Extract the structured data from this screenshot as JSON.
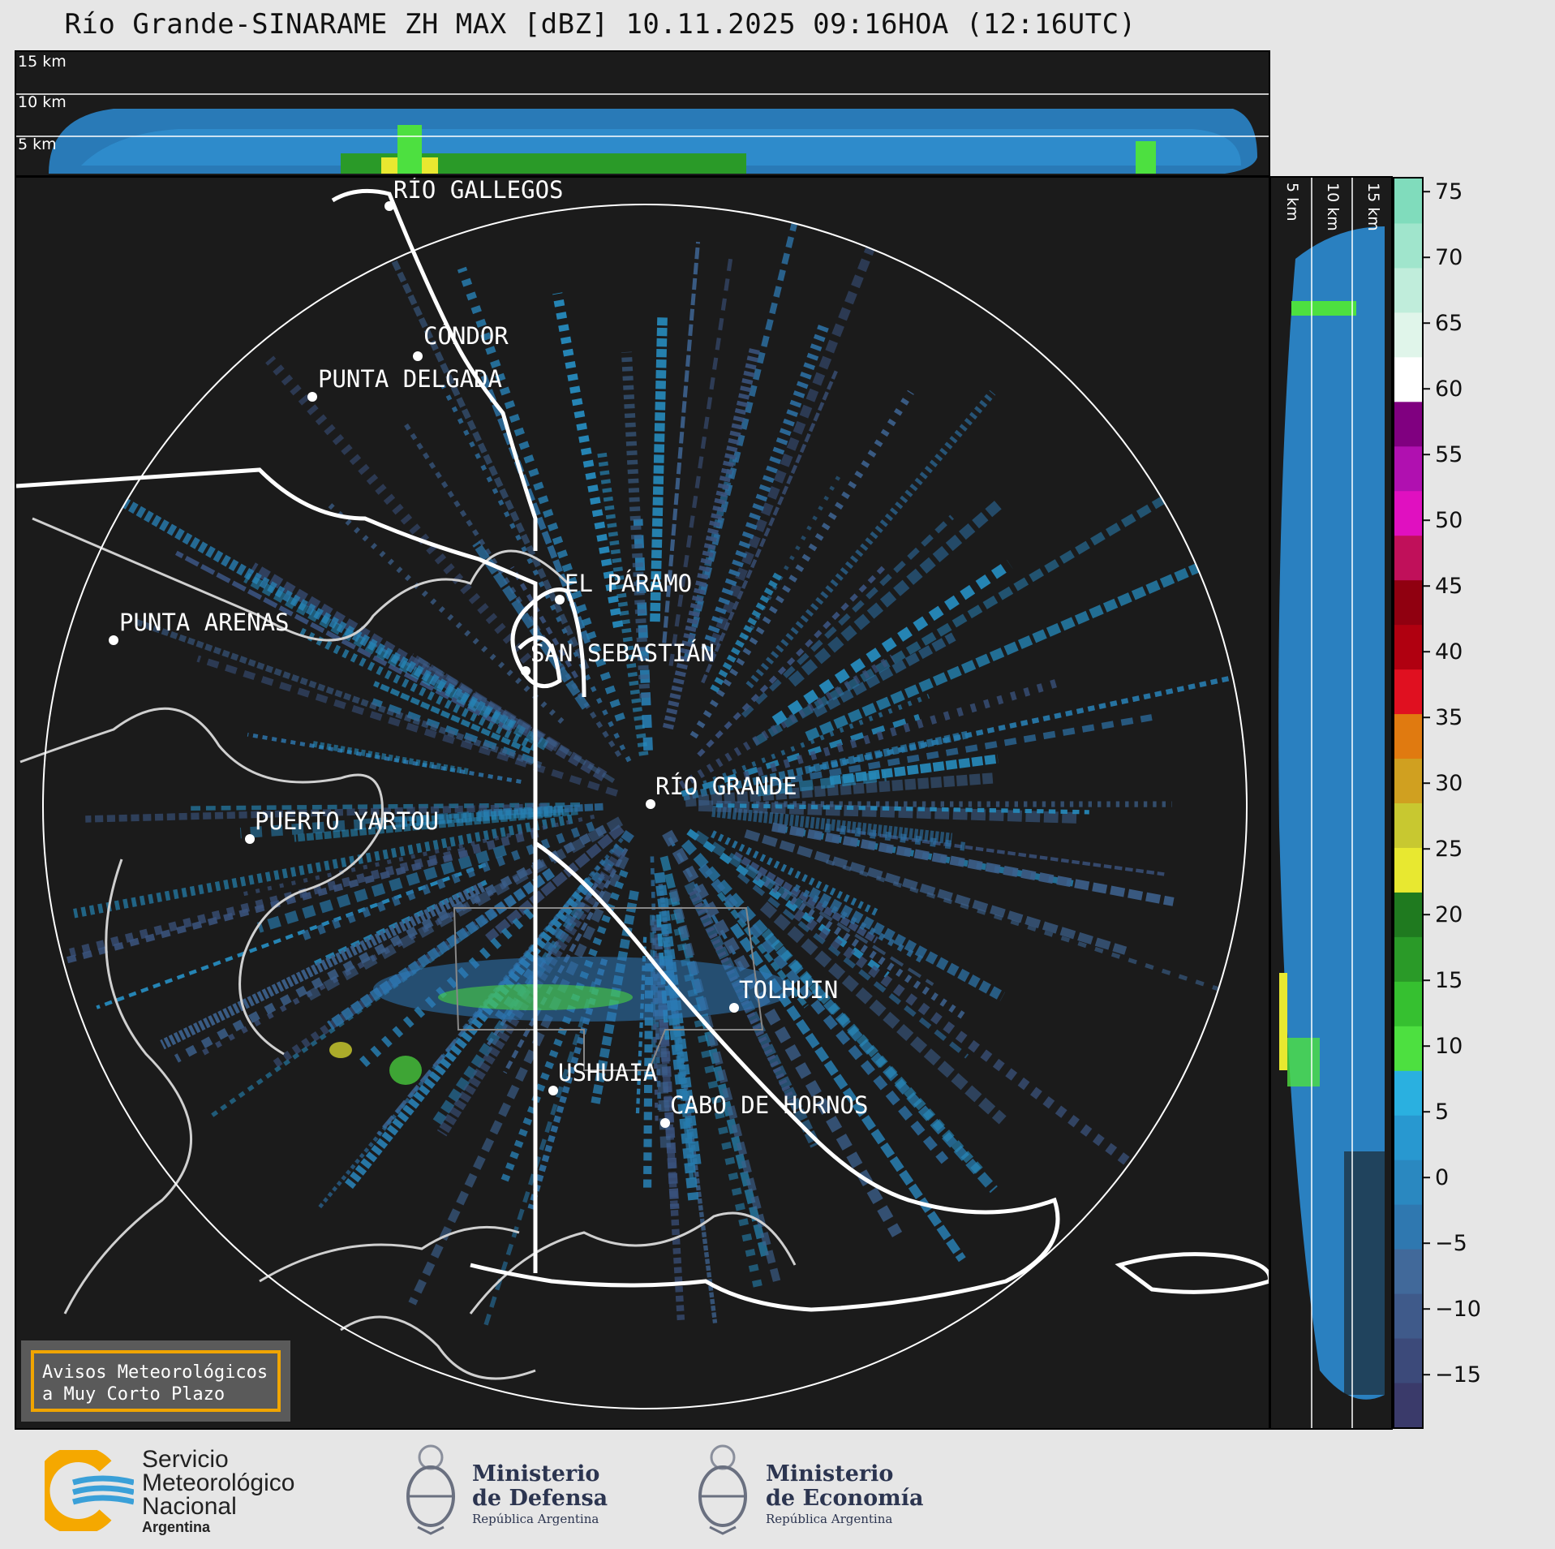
{
  "title": "Río Grande-SINARAME ZH MAX [dBZ] 10.11.2025 09:16HOA (12:16UTC)",
  "top_panel": {
    "height_labels": [
      "15 km",
      "10 km",
      "5 km"
    ]
  },
  "side_panel": {
    "height_labels": [
      "5 km",
      "10 km",
      "15 km"
    ]
  },
  "map": {
    "places": [
      {
        "name": "RÍO GALLEGOS"
      },
      {
        "name": "CÓNDOR"
      },
      {
        "name": "PUNTA DELGADA"
      },
      {
        "name": "EL PÁRAMO"
      },
      {
        "name": "PUNTA ARENAS"
      },
      {
        "name": "SAN SEBASTIÁN"
      },
      {
        "name": "RÍO GRANDE"
      },
      {
        "name": "PUERTO YARTOU"
      },
      {
        "name": "TOLHUIN"
      },
      {
        "name": "USHUAIA"
      },
      {
        "name": "CABO DE HORNOS"
      }
    ]
  },
  "colorbar": {
    "unit": "dBZ",
    "ticks": [
      "75",
      "70",
      "65",
      "60",
      "55",
      "50",
      "45",
      "40",
      "35",
      "30",
      "25",
      "20",
      "15",
      "10",
      "5",
      "0",
      "−5",
      "−10",
      "−15"
    ],
    "range": [
      -19,
      76
    ],
    "colors": [
      "#3a3a6a",
      "#3c4a7a",
      "#3f5a8a",
      "#41699a",
      "#2f78b0",
      "#2a88c0",
      "#2898d0",
      "#2ab0e0",
      "#4de040",
      "#36c030",
      "#2a9a28",
      "#1f7a1f",
      "#e8e830",
      "#c8c830",
      "#d0a020",
      "#e07a10",
      "#e01020",
      "#b00010",
      "#900010",
      "#c0105a",
      "#e010c0",
      "#b010b0",
      "#800080",
      "#ffffff",
      "#e0f5ea",
      "#c0eddb",
      "#a0e5cc",
      "#80dcbc"
    ]
  },
  "notice": {
    "line1": "Avisos Meteorológicos",
    "line2": "a Muy Corto Plazo"
  },
  "footer": {
    "smn": {
      "line1": "Servicio",
      "line2": "Meteorológico",
      "line3": "Nacional",
      "line4": "Argentina"
    },
    "defensa": {
      "line1": "Ministerio",
      "line2": "de Defensa",
      "line3": "República Argentina"
    },
    "economia": {
      "line1": "Ministerio",
      "line2": "de Economía",
      "line3": "República Argentina"
    }
  }
}
